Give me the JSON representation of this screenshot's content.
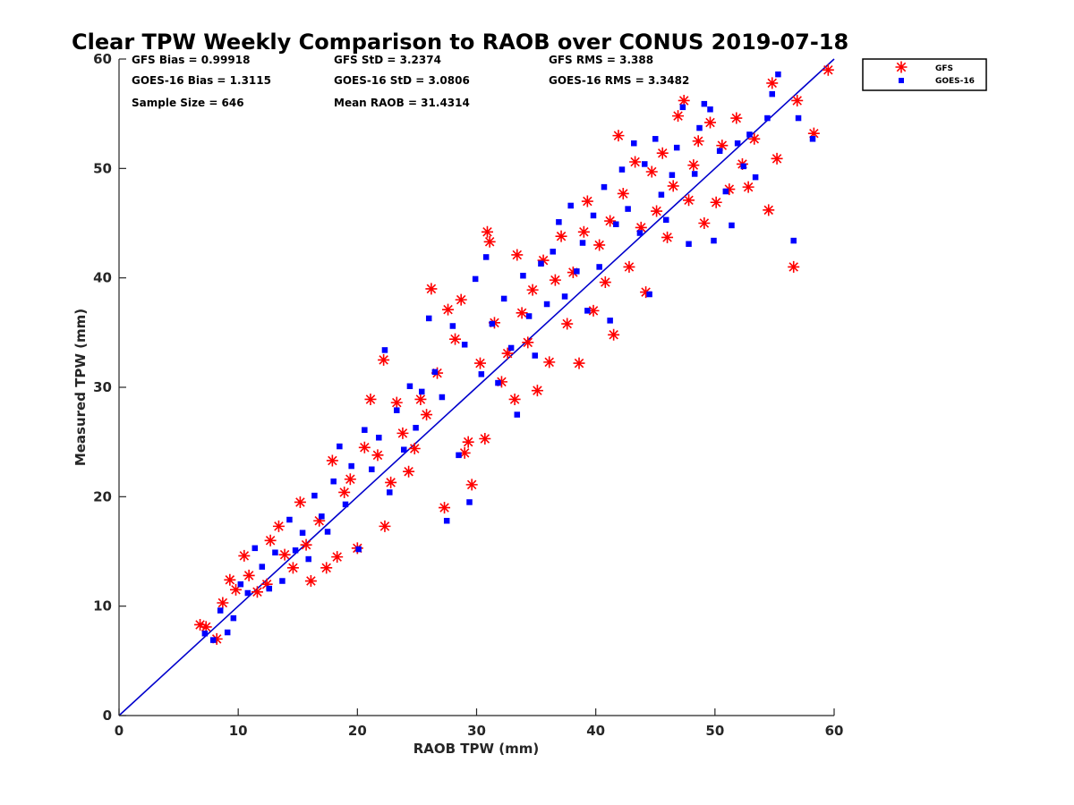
{
  "chart_data": {
    "type": "scatter",
    "title": "Clear TPW Weekly Comparison to RAOB over CONUS 2019-07-18",
    "xlabel": "RAOB TPW (mm)",
    "ylabel": "Measured TPW (mm)",
    "xlim": [
      0,
      60
    ],
    "ylim": [
      0,
      60
    ],
    "xticks": [
      "0",
      "10",
      "20",
      "30",
      "40",
      "50",
      "60"
    ],
    "yticks": [
      "0",
      "10",
      "20",
      "30",
      "40",
      "50",
      "60"
    ],
    "grid": false,
    "legend_position": "top-right outside",
    "stats": {
      "gfs_bias": "GFS Bias = 0.99918",
      "gfs_std": "GFS StD = 3.2374",
      "gfs_rms": "GFS RMS = 3.388",
      "goes_bias": "GOES-16 Bias = 1.3115",
      "goes_std": "GOES-16 StD = 3.0806",
      "goes_rms": "GOES-16 RMS = 3.3482",
      "sample_size": "Sample Size = 646",
      "mean_raob": "Mean RAOB = 31.4314"
    },
    "reference_line": {
      "from": [
        0,
        0
      ],
      "to": [
        60,
        60
      ],
      "color": "#0000cc"
    },
    "series": [
      {
        "name": "GFS",
        "marker": "asterisk",
        "color": "#ff0000",
        "points": [
          [
            6.8,
            8.3
          ],
          [
            7.3,
            8.1
          ],
          [
            8.2,
            7.0
          ],
          [
            8.7,
            10.3
          ],
          [
            9.3,
            12.4
          ],
          [
            9.8,
            11.5
          ],
          [
            10.5,
            14.6
          ],
          [
            10.9,
            12.8
          ],
          [
            11.6,
            11.3
          ],
          [
            12.4,
            12.0
          ],
          [
            12.7,
            16.0
          ],
          [
            13.4,
            17.3
          ],
          [
            13.9,
            14.7
          ],
          [
            14.6,
            13.5
          ],
          [
            15.2,
            19.5
          ],
          [
            15.7,
            15.6
          ],
          [
            16.1,
            12.3
          ],
          [
            16.8,
            17.8
          ],
          [
            17.4,
            13.5
          ],
          [
            17.9,
            23.3
          ],
          [
            18.3,
            14.5
          ],
          [
            18.9,
            20.4
          ],
          [
            19.4,
            21.6
          ],
          [
            20.0,
            15.3
          ],
          [
            20.6,
            24.5
          ],
          [
            21.1,
            28.9
          ],
          [
            21.7,
            23.8
          ],
          [
            22.3,
            17.3
          ],
          [
            22.2,
            32.5
          ],
          [
            22.8,
            21.3
          ],
          [
            23.3,
            28.6
          ],
          [
            23.8,
            25.8
          ],
          [
            24.3,
            22.3
          ],
          [
            24.8,
            24.4
          ],
          [
            25.3,
            28.9
          ],
          [
            25.8,
            27.5
          ],
          [
            26.2,
            39.0
          ],
          [
            26.7,
            31.3
          ],
          [
            27.3,
            19.0
          ],
          [
            27.6,
            37.1
          ],
          [
            28.2,
            34.4
          ],
          [
            28.7,
            38.0
          ],
          [
            29.0,
            24.0
          ],
          [
            29.3,
            25.0
          ],
          [
            29.6,
            21.1
          ],
          [
            30.3,
            32.2
          ],
          [
            30.7,
            25.3
          ],
          [
            30.9,
            44.2
          ],
          [
            31.1,
            43.3
          ],
          [
            31.5,
            35.9
          ],
          [
            32.1,
            30.5
          ],
          [
            32.6,
            33.1
          ],
          [
            33.2,
            28.9
          ],
          [
            33.4,
            42.1
          ],
          [
            33.8,
            36.8
          ],
          [
            34.3,
            34.1
          ],
          [
            34.7,
            38.9
          ],
          [
            35.1,
            29.7
          ],
          [
            35.6,
            41.6
          ],
          [
            36.1,
            32.3
          ],
          [
            36.6,
            39.8
          ],
          [
            37.1,
            43.8
          ],
          [
            37.6,
            35.8
          ],
          [
            38.1,
            40.5
          ],
          [
            38.6,
            32.2
          ],
          [
            39.0,
            44.2
          ],
          [
            39.3,
            47.0
          ],
          [
            39.8,
            37.0
          ],
          [
            40.3,
            43.0
          ],
          [
            40.8,
            39.6
          ],
          [
            41.2,
            45.2
          ],
          [
            41.5,
            34.8
          ],
          [
            41.9,
            53.0
          ],
          [
            42.3,
            47.7
          ],
          [
            42.8,
            41.0
          ],
          [
            43.3,
            50.6
          ],
          [
            43.8,
            44.6
          ],
          [
            44.2,
            38.7
          ],
          [
            44.7,
            49.7
          ],
          [
            45.1,
            46.1
          ],
          [
            45.6,
            51.4
          ],
          [
            46.0,
            43.7
          ],
          [
            46.5,
            48.4
          ],
          [
            46.9,
            54.8
          ],
          [
            47.4,
            56.2
          ],
          [
            47.8,
            47.1
          ],
          [
            48.2,
            50.3
          ],
          [
            48.6,
            52.5
          ],
          [
            49.1,
            45.0
          ],
          [
            49.6,
            54.2
          ],
          [
            50.1,
            46.9
          ],
          [
            50.6,
            52.1
          ],
          [
            51.2,
            48.1
          ],
          [
            51.8,
            54.6
          ],
          [
            52.3,
            50.4
          ],
          [
            52.8,
            48.3
          ],
          [
            53.3,
            52.7
          ],
          [
            54.5,
            46.2
          ],
          [
            54.8,
            57.8
          ],
          [
            55.2,
            50.9
          ],
          [
            56.6,
            41.0
          ],
          [
            56.9,
            56.2
          ],
          [
            58.3,
            53.2
          ],
          [
            59.5,
            59.0
          ]
        ]
      },
      {
        "name": "GOES-16",
        "marker": "square",
        "color": "#0000ff",
        "points": [
          [
            7.2,
            7.5
          ],
          [
            7.9,
            6.9
          ],
          [
            8.5,
            9.6
          ],
          [
            9.1,
            7.6
          ],
          [
            9.6,
            8.9
          ],
          [
            10.2,
            12.0
          ],
          [
            10.8,
            11.2
          ],
          [
            11.4,
            15.3
          ],
          [
            12.0,
            13.6
          ],
          [
            12.6,
            11.6
          ],
          [
            13.1,
            14.9
          ],
          [
            13.7,
            12.3
          ],
          [
            14.3,
            17.9
          ],
          [
            14.8,
            15.1
          ],
          [
            15.4,
            16.7
          ],
          [
            15.9,
            14.3
          ],
          [
            16.4,
            20.1
          ],
          [
            17.0,
            18.2
          ],
          [
            17.5,
            16.8
          ],
          [
            18.0,
            21.4
          ],
          [
            18.5,
            24.6
          ],
          [
            19.0,
            19.3
          ],
          [
            19.5,
            22.8
          ],
          [
            20.1,
            15.2
          ],
          [
            20.6,
            26.1
          ],
          [
            21.2,
            22.5
          ],
          [
            21.8,
            25.4
          ],
          [
            22.3,
            33.4
          ],
          [
            22.7,
            20.4
          ],
          [
            23.3,
            27.9
          ],
          [
            23.9,
            24.3
          ],
          [
            24.4,
            30.1
          ],
          [
            24.9,
            26.3
          ],
          [
            25.4,
            29.6
          ],
          [
            26.0,
            36.3
          ],
          [
            26.5,
            31.4
          ],
          [
            27.1,
            29.1
          ],
          [
            27.5,
            17.8
          ],
          [
            28.0,
            35.6
          ],
          [
            28.5,
            23.8
          ],
          [
            29.0,
            33.9
          ],
          [
            29.4,
            19.5
          ],
          [
            29.9,
            39.9
          ],
          [
            30.4,
            31.2
          ],
          [
            30.8,
            41.9
          ],
          [
            31.3,
            35.8
          ],
          [
            31.8,
            30.4
          ],
          [
            32.3,
            38.1
          ],
          [
            32.9,
            33.6
          ],
          [
            33.4,
            27.5
          ],
          [
            33.9,
            40.2
          ],
          [
            34.4,
            36.5
          ],
          [
            34.9,
            32.9
          ],
          [
            35.4,
            41.3
          ],
          [
            35.9,
            37.6
          ],
          [
            36.4,
            42.4
          ],
          [
            36.9,
            45.1
          ],
          [
            37.4,
            38.3
          ],
          [
            37.9,
            46.6
          ],
          [
            38.4,
            40.6
          ],
          [
            38.9,
            43.2
          ],
          [
            39.3,
            37.0
          ],
          [
            39.8,
            45.7
          ],
          [
            40.3,
            41.0
          ],
          [
            40.7,
            48.3
          ],
          [
            41.2,
            36.1
          ],
          [
            41.7,
            44.9
          ],
          [
            42.2,
            49.9
          ],
          [
            42.7,
            46.3
          ],
          [
            43.2,
            52.3
          ],
          [
            43.7,
            44.1
          ],
          [
            44.1,
            50.4
          ],
          [
            44.5,
            38.5
          ],
          [
            45.0,
            52.7
          ],
          [
            45.5,
            47.6
          ],
          [
            45.9,
            45.3
          ],
          [
            46.4,
            49.4
          ],
          [
            46.8,
            51.9
          ],
          [
            47.3,
            55.6
          ],
          [
            47.8,
            43.1
          ],
          [
            48.3,
            49.5
          ],
          [
            48.7,
            53.7
          ],
          [
            49.1,
            55.9
          ],
          [
            49.6,
            55.4
          ],
          [
            49.9,
            43.4
          ],
          [
            50.4,
            51.6
          ],
          [
            50.9,
            47.9
          ],
          [
            51.4,
            44.8
          ],
          [
            51.9,
            52.3
          ],
          [
            52.4,
            50.2
          ],
          [
            52.9,
            53.1
          ],
          [
            53.4,
            49.2
          ],
          [
            54.4,
            54.6
          ],
          [
            54.8,
            56.8
          ],
          [
            55.3,
            58.6
          ],
          [
            56.6,
            43.4
          ],
          [
            57.0,
            54.6
          ],
          [
            58.2,
            52.7
          ]
        ]
      }
    ]
  }
}
